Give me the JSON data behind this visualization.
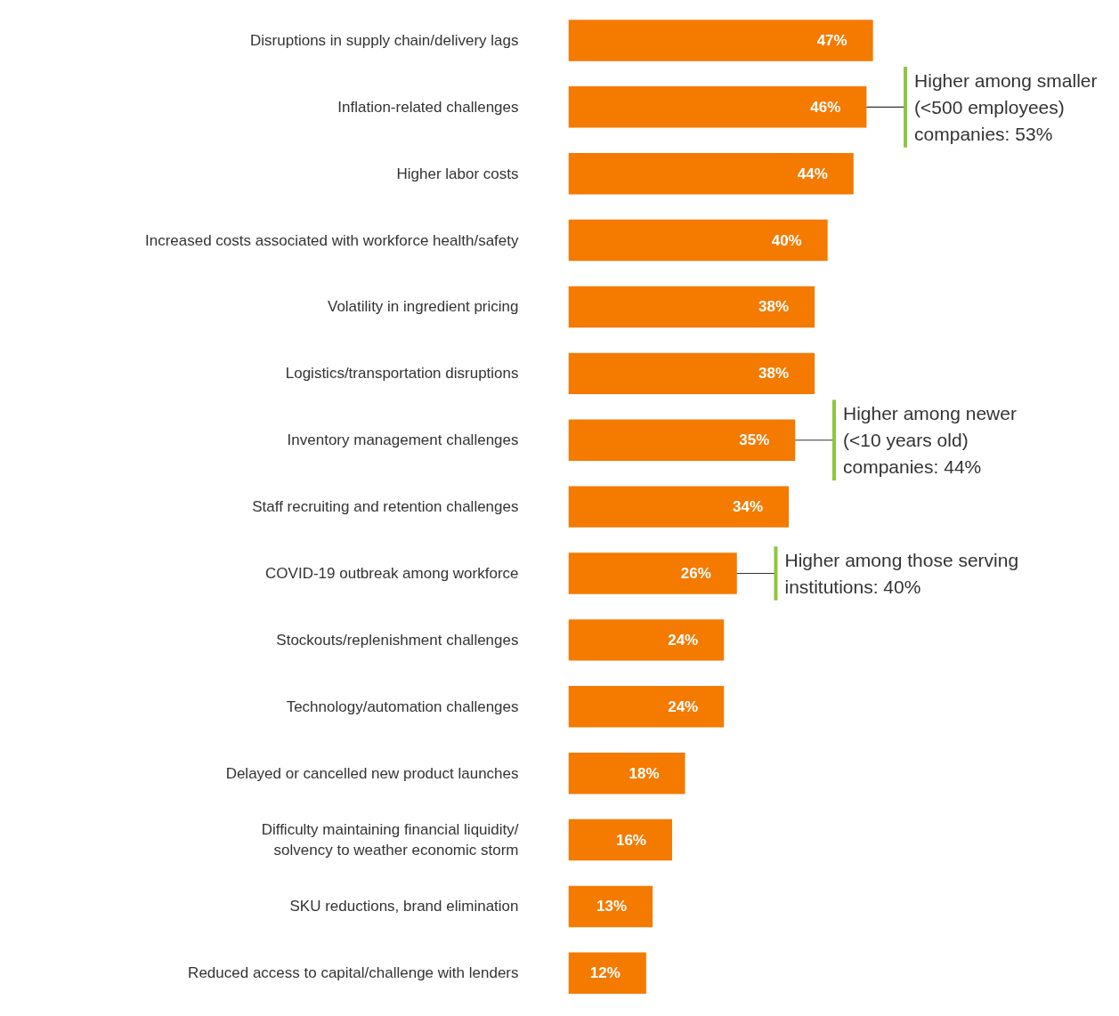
{
  "chart_data": {
    "type": "bar",
    "orientation": "horizontal",
    "categories": [
      "Disruptions in supply chain/delivery lags",
      "Inflation-related challenges",
      "Higher labor costs",
      "Increased costs associated with workforce health/safety",
      "Volatility in ingredient pricing",
      "Logistics/transportation disruptions",
      "Inventory management challenges",
      "Staff recruiting and retention challenges",
      "COVID-19 outbreak among workforce",
      "Stockouts/replenishment challenges",
      "Technology/automation challenges",
      "Delayed or cancelled new product launches",
      "Difficulty maintaining financial liquidity/\nsolvency to weather economic storm",
      "SKU reductions, brand elimination",
      "Reduced access to capital/challenge with lenders"
    ],
    "values": [
      47,
      46,
      44,
      40,
      38,
      38,
      35,
      34,
      26,
      24,
      24,
      18,
      16,
      13,
      12
    ],
    "value_labels": [
      "47%",
      "46%",
      "44%",
      "40%",
      "38%",
      "38%",
      "35%",
      "34%",
      "26%",
      "24%",
      "24%",
      "18%",
      "16%",
      "13%",
      "12%"
    ],
    "color": "#f47a00",
    "annotations": [
      {
        "text": "Higher among smaller\n(<500 employees)\ncompanies: 53%",
        "x": 46,
        "y": "Inflation-related challenges"
      },
      {
        "text": "Higher among newer\n(<10 years old)\ncompanies: 44%",
        "x": 35,
        "y": "Inventory management challenges"
      },
      {
        "text": "Higher among those serving\ninstitutions: 40%",
        "x": 26,
        "y": "COVID-19 outbreak among workforce"
      }
    ],
    "grid": false
  }
}
